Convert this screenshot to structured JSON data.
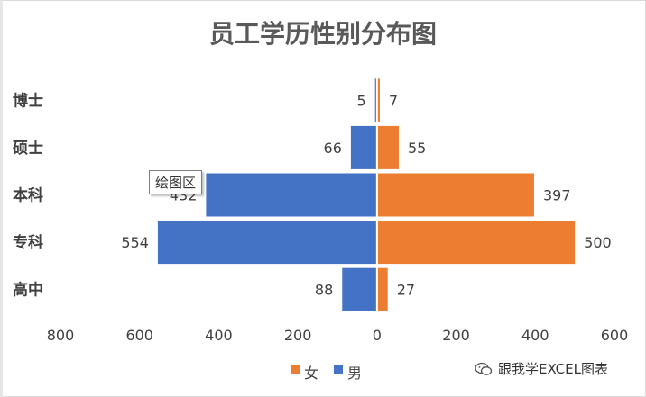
{
  "chart_data": {
    "type": "bar",
    "orientation": "horizontal",
    "title": "员工学历性别分布图",
    "categories": [
      "博士",
      "硕士",
      "本科",
      "专科",
      "高中"
    ],
    "series": [
      {
        "name": "男",
        "values": [
          5,
          66,
          432,
          554,
          88
        ],
        "color": "#4472c4",
        "direction": "left"
      },
      {
        "name": "女",
        "values": [
          7,
          55,
          397,
          500,
          27
        ],
        "color": "#ed7d31",
        "direction": "right"
      }
    ],
    "x_ticks": [
      "800",
      "600",
      "400",
      "200",
      "0",
      "200",
      "400",
      "600"
    ],
    "xlim": [
      -800,
      600
    ],
    "grid": false,
    "legend_position": "bottom",
    "legend": [
      {
        "name": "女",
        "color": "#ed7d31"
      },
      {
        "name": "男",
        "color": "#4472c4"
      }
    ]
  },
  "tooltip": {
    "text": "绘图区"
  },
  "watermark": {
    "text": "跟我学EXCEL图表",
    "icon": "wechat-icon"
  }
}
